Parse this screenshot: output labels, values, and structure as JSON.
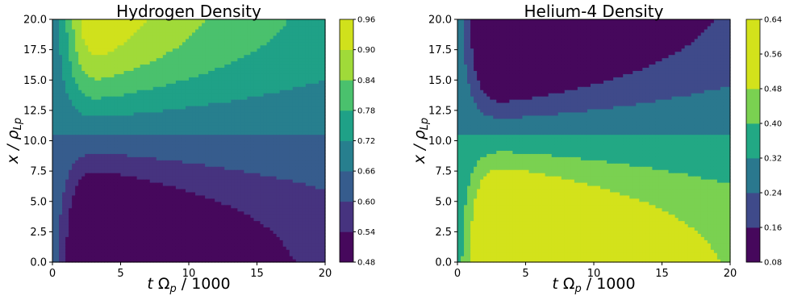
{
  "chart_data": [
    {
      "type": "heatmap",
      "subtype": "filled-contour",
      "title": "Hydrogen Density",
      "xlabel": "t Ω_p / 1000",
      "ylabel": "x / ρ_Lp",
      "xlim": [
        0,
        20
      ],
      "ylim": [
        0,
        20
      ],
      "x_ticks": [
        "0",
        "5",
        "10",
        "15",
        "20"
      ],
      "y_ticks": [
        "0.0",
        "2.5",
        "5.0",
        "7.5",
        "10.0",
        "12.5",
        "15.0",
        "17.5",
        "20.0"
      ],
      "colormap": "viridis",
      "levels": [
        0.48,
        0.54,
        0.6,
        0.66,
        0.72,
        0.78,
        0.84,
        0.9,
        0.96
      ],
      "colorbar_ticks": [
        "0.48",
        "0.54",
        "0.60",
        "0.66",
        "0.72",
        "0.78",
        "0.84",
        "0.90",
        "0.96"
      ],
      "band_colors": [
        "#46085c",
        "#46337f",
        "#365c8d",
        "#277f8e",
        "#1fa187",
        "#4ac16d",
        "#a0da39",
        "#d0e11c"
      ],
      "model": {
        "base": 0.66,
        "amplitude": 0.34,
        "center_x": 10.5,
        "sigma_x": 6.6,
        "rise_t": 1.3,
        "rise_width": 0.6,
        "peak_t": 3.0,
        "decay_t": 15,
        "sign": 1
      }
    },
    {
      "type": "heatmap",
      "subtype": "filled-contour",
      "title": "Helium-4 Density",
      "xlabel": "t Ω_p / 1000",
      "ylabel": "x / ρ_Lp",
      "xlim": [
        0,
        20
      ],
      "ylim": [
        0,
        20
      ],
      "x_ticks": [
        "0",
        "5",
        "10",
        "15",
        "20"
      ],
      "y_ticks": [
        "0.0",
        "2.5",
        "5.0",
        "7.5",
        "10.0",
        "12.5",
        "15.0",
        "17.5",
        "20.0"
      ],
      "colormap": "viridis",
      "levels": [
        0.08,
        0.16,
        0.24,
        0.32,
        0.4,
        0.48,
        0.56,
        0.64
      ],
      "colorbar_ticks": [
        "0.08",
        "0.16",
        "0.24",
        "0.32",
        "0.40",
        "0.48",
        "0.56",
        "0.64"
      ],
      "band_colors": [
        "#46085c",
        "#3f4a8a",
        "#2a788e",
        "#22a884",
        "#7ad151",
        "#d3e21b",
        "#d3e21b"
      ],
      "model": {
        "base": 0.32,
        "amplitude": 0.5,
        "center_x": 10.5,
        "sigma_x": 6.6,
        "rise_t": 1.3,
        "rise_width": 0.6,
        "peak_t": 3.0,
        "decay_t": 15,
        "sign": -1
      }
    }
  ]
}
